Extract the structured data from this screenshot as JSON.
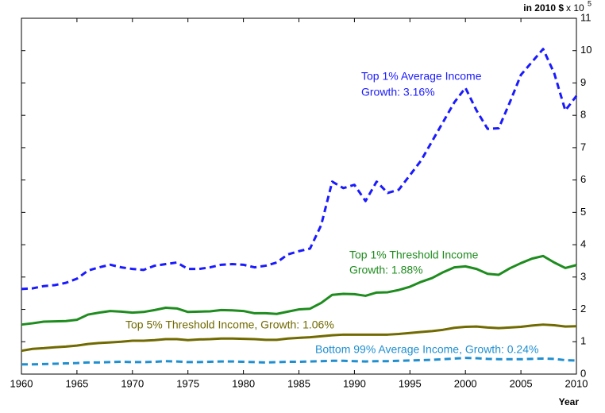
{
  "chart_data": {
    "type": "line",
    "xlabel": "Year",
    "ylabel": "in 2010 $",
    "y_multiplier": "x 10",
    "y_exponent": "5",
    "x": [
      1960,
      1961,
      1962,
      1963,
      1964,
      1965,
      1966,
      1967,
      1968,
      1969,
      1970,
      1971,
      1972,
      1973,
      1974,
      1975,
      1976,
      1977,
      1978,
      1979,
      1980,
      1981,
      1982,
      1983,
      1984,
      1985,
      1986,
      1987,
      1988,
      1989,
      1990,
      1991,
      1992,
      1993,
      1994,
      1995,
      1996,
      1997,
      1998,
      1999,
      2000,
      2001,
      2002,
      2003,
      2004,
      2005,
      2006,
      2007,
      2008,
      2009,
      2010
    ],
    "xlim": [
      1960,
      2010
    ],
    "xticks": [
      1960,
      1965,
      1970,
      1975,
      1980,
      1985,
      1990,
      1995,
      2000,
      2005,
      2010
    ],
    "ylim": [
      0,
      11
    ],
    "yticks": [
      0,
      1,
      2,
      3,
      4,
      5,
      6,
      7,
      8,
      9,
      10,
      11
    ],
    "series": [
      {
        "name": "Top 1% Average Income",
        "note": "Growth: 3.16%",
        "color": "#1a1aff",
        "dashed": true,
        "values": [
          2.63,
          2.65,
          2.72,
          2.75,
          2.82,
          2.95,
          3.2,
          3.3,
          3.38,
          3.3,
          3.25,
          3.22,
          3.35,
          3.4,
          3.45,
          3.25,
          3.25,
          3.3,
          3.38,
          3.4,
          3.38,
          3.3,
          3.35,
          3.45,
          3.7,
          3.8,
          3.88,
          4.6,
          5.95,
          5.75,
          5.85,
          5.35,
          5.95,
          5.6,
          5.7,
          6.15,
          6.6,
          7.2,
          7.8,
          8.4,
          8.85,
          8.15,
          7.58,
          7.6,
          8.4,
          9.25,
          9.65,
          10.05,
          9.3,
          8.15,
          8.6
        ]
      },
      {
        "name": "Top 1% Threshold Income",
        "note": "Growth: 1.88%",
        "color": "#1e8c1e",
        "dashed": false,
        "values": [
          1.53,
          1.57,
          1.62,
          1.63,
          1.64,
          1.68,
          1.84,
          1.9,
          1.95,
          1.93,
          1.9,
          1.92,
          1.98,
          2.05,
          2.03,
          1.92,
          1.93,
          1.94,
          1.98,
          1.97,
          1.95,
          1.88,
          1.88,
          1.86,
          1.93,
          2.0,
          2.02,
          2.2,
          2.45,
          2.48,
          2.47,
          2.42,
          2.52,
          2.53,
          2.6,
          2.7,
          2.85,
          2.97,
          3.15,
          3.3,
          3.33,
          3.25,
          3.1,
          3.07,
          3.27,
          3.43,
          3.57,
          3.65,
          3.45,
          3.28,
          3.37
        ]
      },
      {
        "name": "Top 5% Threshold Income, Growth: 1.06%",
        "color": "#706a00",
        "dashed": false,
        "values": [
          0.72,
          0.78,
          0.8,
          0.83,
          0.85,
          0.88,
          0.93,
          0.96,
          0.98,
          1.0,
          1.03,
          1.03,
          1.05,
          1.08,
          1.08,
          1.05,
          1.07,
          1.08,
          1.1,
          1.1,
          1.09,
          1.08,
          1.06,
          1.06,
          1.1,
          1.12,
          1.14,
          1.17,
          1.2,
          1.22,
          1.22,
          1.22,
          1.22,
          1.22,
          1.24,
          1.27,
          1.3,
          1.33,
          1.37,
          1.43,
          1.46,
          1.47,
          1.44,
          1.42,
          1.44,
          1.46,
          1.5,
          1.53,
          1.51,
          1.47,
          1.48
        ]
      },
      {
        "name": "Bottom 99% Average Income, Growth: 0.24%",
        "color": "#1f8fd0",
        "dashed": true,
        "values": [
          0.3,
          0.3,
          0.31,
          0.32,
          0.33,
          0.34,
          0.36,
          0.36,
          0.37,
          0.38,
          0.37,
          0.37,
          0.38,
          0.4,
          0.39,
          0.37,
          0.37,
          0.38,
          0.39,
          0.39,
          0.38,
          0.37,
          0.36,
          0.37,
          0.38,
          0.38,
          0.39,
          0.4,
          0.41,
          0.41,
          0.4,
          0.39,
          0.4,
          0.4,
          0.41,
          0.42,
          0.43,
          0.44,
          0.46,
          0.48,
          0.5,
          0.49,
          0.47,
          0.46,
          0.46,
          0.46,
          0.47,
          0.48,
          0.47,
          0.43,
          0.42
        ]
      }
    ]
  }
}
